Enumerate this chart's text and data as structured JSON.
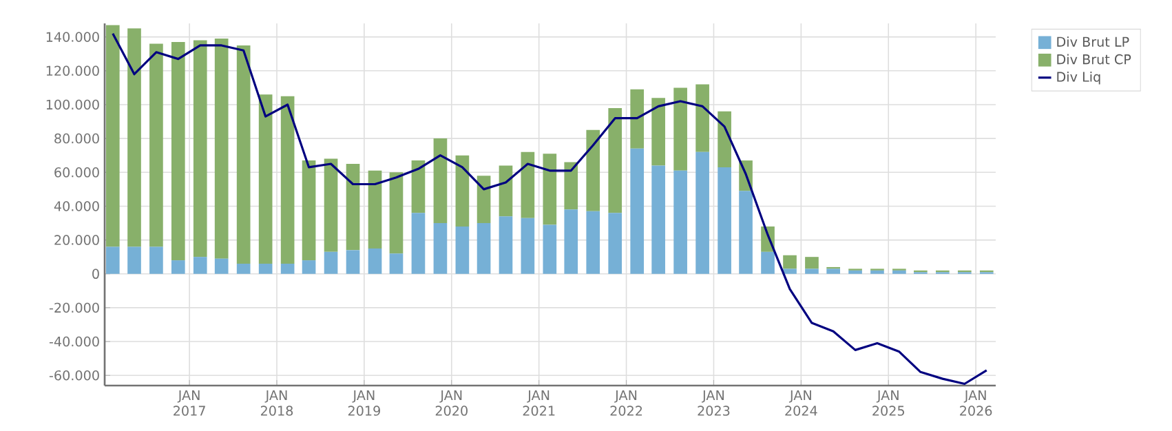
{
  "chart_data": {
    "type": "bar",
    "stacked": true,
    "x": [
      "2016-02-15",
      "2016-05-15",
      "2016-08-15",
      "2016-11-15",
      "2017-02-15",
      "2017-05-15",
      "2017-08-15",
      "2017-11-15",
      "2018-02-15",
      "2018-05-15",
      "2018-08-15",
      "2018-11-15",
      "2019-02-15",
      "2019-05-15",
      "2019-08-15",
      "2019-11-15",
      "2020-02-15",
      "2020-05-15",
      "2020-08-15",
      "2020-11-15",
      "2021-02-15",
      "2021-05-15",
      "2021-08-15",
      "2021-11-15",
      "2022-02-15",
      "2022-05-15",
      "2022-08-15",
      "2022-11-15",
      "2023-02-15",
      "2023-05-15",
      "2023-08-15",
      "2023-11-15",
      "2024-02-15",
      "2024-05-15",
      "2024-08-15",
      "2024-11-15",
      "2025-02-15",
      "2025-05-15",
      "2025-08-15",
      "2025-11-15",
      "2026-02-15"
    ],
    "series": [
      {
        "name": "Div Brut LP",
        "color": "#76b0d6",
        "values": [
          16000,
          16000,
          16000,
          8000,
          10000,
          9000,
          6000,
          6000,
          6000,
          8000,
          13000,
          14000,
          15000,
          12000,
          36000,
          30000,
          28000,
          30000,
          34000,
          33000,
          29000,
          38000,
          37000,
          36000,
          74000,
          64000,
          61000,
          72000,
          63000,
          49000,
          13000,
          3000,
          3000,
          3000,
          2000,
          2000,
          2000,
          1000,
          1000,
          1000,
          1000
        ]
      },
      {
        "name": "Div Brut CP",
        "color": "#88b06a",
        "values": [
          131000,
          129000,
          120000,
          129000,
          128000,
          130000,
          129000,
          100000,
          99000,
          59000,
          55000,
          51000,
          46000,
          48000,
          31000,
          50000,
          42000,
          28000,
          30000,
          39000,
          42000,
          28000,
          48000,
          62000,
          35000,
          40000,
          49000,
          40000,
          33000,
          18000,
          15000,
          8000,
          7000,
          1000,
          1000,
          1000,
          1000,
          1000,
          1000,
          1000,
          1000
        ]
      },
      {
        "name": "Div Liq",
        "type": "line",
        "color": "#000080",
        "values": [
          142000,
          118000,
          131000,
          127000,
          135000,
          135000,
          132000,
          93000,
          100000,
          63000,
          65000,
          53000,
          53000,
          57000,
          62000,
          70000,
          63000,
          50000,
          54000,
          65000,
          61000,
          61000,
          76000,
          92000,
          92000,
          99000,
          102000,
          99000,
          87000,
          59000,
          23000,
          -9000,
          -29000,
          -34000,
          -45000,
          -41000,
          -46000,
          -58000,
          -62000,
          -65000,
          -57000
        ]
      }
    ],
    "xlim": [
      "2016-01-12",
      "2026-03-25"
    ],
    "xticks": [
      {
        "value": "2017-01-01",
        "label": "JAN 2017"
      },
      {
        "value": "2018-01-01",
        "label": "JAN 2018"
      },
      {
        "value": "2019-01-01",
        "label": "JAN 2019"
      },
      {
        "value": "2020-01-01",
        "label": "JAN 2020"
      },
      {
        "value": "2021-01-01",
        "label": "JAN 2021"
      },
      {
        "value": "2022-01-01",
        "label": "JAN 2022"
      },
      {
        "value": "2023-01-01",
        "label": "JAN 2023"
      },
      {
        "value": "2024-01-01",
        "label": "JAN 2024"
      },
      {
        "value": "2025-01-01",
        "label": "JAN 2025"
      },
      {
        "value": "2026-01-01",
        "label": "JAN 2026"
      }
    ],
    "ylim": [
      -66000,
      148000
    ],
    "yticks": [
      {
        "value": -60000,
        "label": "-60.000"
      },
      {
        "value": -40000,
        "label": "-40.000"
      },
      {
        "value": -20000,
        "label": "-20.000"
      },
      0,
      {
        "value": 20000,
        "label": "20.000"
      },
      {
        "value": 40000,
        "label": "40.000"
      },
      {
        "value": 60000,
        "label": "60.000"
      },
      {
        "value": 80000,
        "label": "80.000"
      },
      {
        "value": 100000,
        "label": "100.000"
      },
      {
        "value": 120000,
        "label": "120.000"
      },
      {
        "value": 140000,
        "label": "140.000"
      }
    ],
    "grid": true,
    "legend": "top right",
    "line_style": "solid"
  }
}
